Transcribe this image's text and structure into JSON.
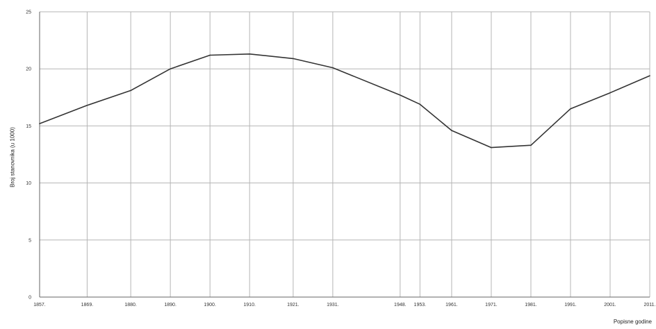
{
  "chart_data": {
    "type": "line",
    "title": "",
    "xlabel": "Popisne godine",
    "ylabel": "Broj stanovnika (u 1000)",
    "categories": [
      "1857.",
      "1869.",
      "1880.",
      "1890.",
      "1900.",
      "1910.",
      "1921.",
      "1931.",
      "1948.",
      "1953.",
      "1961.",
      "1971.",
      "1981.",
      "1991.",
      "2001.",
      "2011."
    ],
    "x": [
      1857,
      1869,
      1880,
      1890,
      1900,
      1910,
      1921,
      1931,
      1948,
      1953,
      1961,
      1971,
      1981,
      1991,
      2001,
      2011
    ],
    "series": [
      {
        "values": [
          15.2,
          16.8,
          18.1,
          20.0,
          21.2,
          21.3,
          20.9,
          20.1,
          17.7,
          16.9,
          14.6,
          13.1,
          13.3,
          16.5,
          17.9,
          19.4
        ]
      }
    ],
    "ylim": [
      0,
      25
    ],
    "yticks": [
      0,
      5,
      10,
      15,
      20,
      25
    ],
    "grid": true,
    "colors": {
      "line": "#333333",
      "grid": "#b5b5b5",
      "axis": "#666666"
    }
  }
}
